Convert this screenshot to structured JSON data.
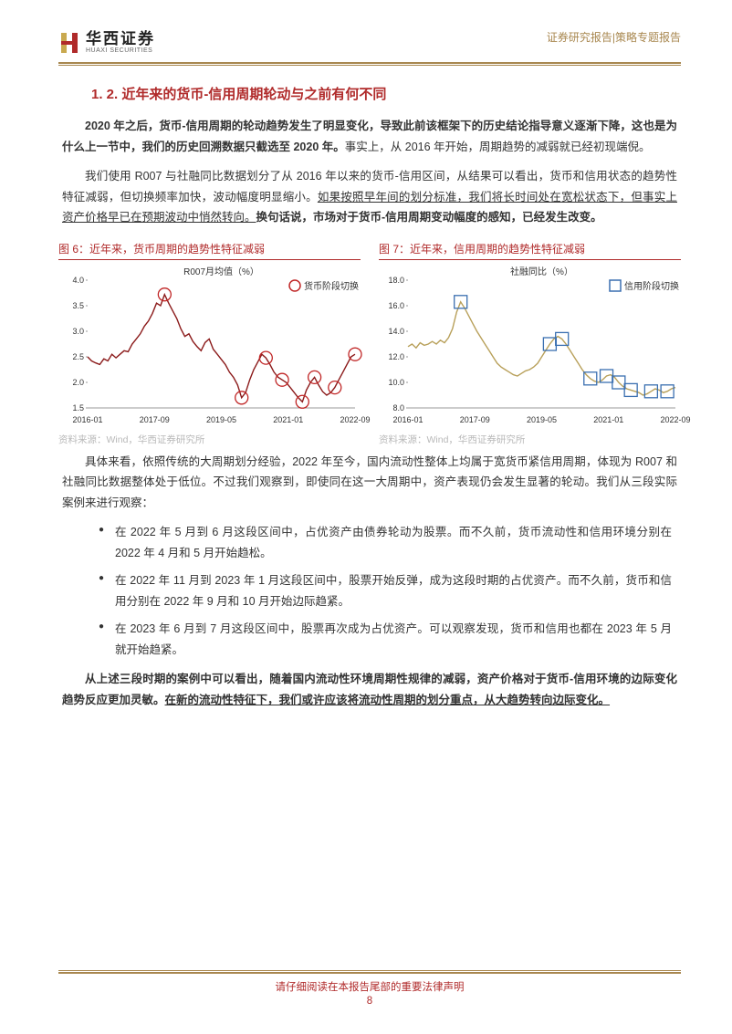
{
  "header": {
    "logo_cn": "华西证券",
    "logo_en": "HUAXI SECURITIES",
    "doc_type": "证券研究报告|策略专题报告"
  },
  "section_title": "1. 2. 近年来的货币-信用周期轮动与之前有何不同",
  "para1_a": "2020 年之后，货币-信用周期的轮动趋势发生了明显变化，导致此前该框架下的历史结论指导意义逐渐下降，这也是为什么上一节中，我们的历史回溯数据只截选至 2020 年。",
  "para1_b": "事实上，从 2016 年开始，周期趋势的减弱就已经初现端倪。",
  "para2_a": "我们使用 R007 与社融同比数据划分了从 2016 年以来的货币-信用区间，从结果可以看出，货币和信用状态的趋势性特征减弱，但切换频率加快，波动幅度明显缩小。",
  "para2_u": "如果按照早年间的划分标准，我们将长时间处在宽松状态下，但事实上资产价格早已在预期波动中悄然转向。",
  "para2_b": "换句话说，市场对于货币-信用周期变动幅度的感知，已经发生改变。",
  "chart6": {
    "title": "图 6：近年来，货币周期的趋势性特征减弱",
    "type": "line",
    "series_label": "R007月均值（%）",
    "legend_marker": "货币阶段切换",
    "line_color": "#8b1a1a",
    "marker_stroke": "#c02626",
    "title_color": "#b02a2a",
    "background_color": "#ffffff",
    "axis_color": "#333333",
    "ylim": [
      1.5,
      4.0
    ],
    "yticks": [
      1.5,
      2.0,
      2.5,
      3.0,
      3.5,
      4.0
    ],
    "xticks": [
      "2016-01",
      "2017-09",
      "2019-05",
      "2021-01",
      "2022-09"
    ],
    "values": [
      2.5,
      2.42,
      2.38,
      2.35,
      2.46,
      2.42,
      2.55,
      2.48,
      2.55,
      2.62,
      2.6,
      2.75,
      2.85,
      2.95,
      3.1,
      3.2,
      3.35,
      3.55,
      3.5,
      3.72,
      3.55,
      3.4,
      3.25,
      3.05,
      2.9,
      2.95,
      2.8,
      2.7,
      2.62,
      2.78,
      2.85,
      2.65,
      2.55,
      2.45,
      2.35,
      2.2,
      2.1,
      1.95,
      1.7,
      1.8,
      2.05,
      2.25,
      2.4,
      2.55,
      2.48,
      2.35,
      2.2,
      2.1,
      2.05,
      2.0,
      1.9,
      1.8,
      1.7,
      1.62,
      1.85,
      2.0,
      2.1,
      1.95,
      1.82,
      1.75,
      1.8,
      1.9,
      2.05,
      2.2,
      2.35,
      2.5,
      2.55
    ],
    "markers_idx": [
      19,
      38,
      44,
      48,
      53,
      56,
      61,
      66
    ],
    "source": "资料来源：Wind，华西证券研究所"
  },
  "chart7": {
    "title": "图 7：近年来，信用周期的趋势性特征减弱",
    "type": "line",
    "series_label": "社融同比（%）",
    "legend_marker": "信用阶段切换",
    "line_color": "#b8a05a",
    "marker_stroke": "#3a6fb0",
    "title_color": "#b02a2a",
    "background_color": "#ffffff",
    "axis_color": "#333333",
    "ylim": [
      8,
      18
    ],
    "yticks": [
      8,
      10,
      12,
      14,
      16,
      18
    ],
    "xticks": [
      "2016-01",
      "2017-09",
      "2019-05",
      "2021-01",
      "2022-09"
    ],
    "values": [
      12.8,
      13.0,
      12.7,
      13.1,
      12.9,
      13.0,
      13.2,
      13.0,
      13.3,
      13.1,
      13.5,
      14.2,
      15.5,
      16.3,
      15.8,
      15.2,
      14.6,
      14.0,
      13.5,
      13.0,
      12.5,
      12.0,
      11.5,
      11.2,
      11.0,
      10.8,
      10.6,
      10.5,
      10.7,
      10.9,
      11.0,
      11.2,
      11.5,
      12.0,
      12.5,
      13.0,
      13.4,
      13.6,
      13.4,
      13.0,
      12.5,
      12.0,
      11.5,
      11.0,
      10.6,
      10.3,
      10.1,
      10.0,
      10.2,
      10.5,
      10.6,
      10.4,
      10.0,
      9.7,
      9.5,
      9.4,
      9.3,
      9.2,
      9.0,
      9.1,
      9.3,
      9.5,
      9.4,
      9.2,
      9.3,
      9.5,
      9.6
    ],
    "markers_idx": [
      13,
      35,
      38,
      45,
      49,
      52,
      55,
      60,
      64
    ],
    "source": "资料来源：Wind，华西证券研究所"
  },
  "para3": "具体来看，依照传统的大周期划分经验，2022 年至今，国内流动性整体上均属于宽货币紧信用周期，体现为 R007 和社融同比数据整体处于低位。不过我们观察到，即使同在这一大周期中，资产表现仍会发生显著的轮动。我们从三段实际案例来进行观察：",
  "bullets": [
    "在 2022 年 5 月到 6 月这段区间中，占优资产由债券轮动为股票。而不久前，货币流动性和信用环境分别在 2022 年 4 月和 5 月开始趋松。",
    "在 2022 年 11 月到 2023 年 1 月这段区间中，股票开始反弹，成为这段时期的占优资产。而不久前，货币和信用分别在 2022 年 9 月和 10 月开始边际趋紧。",
    "在 2023 年 6 月到 7 月这段区间中，股票再次成为占优资产。可以观察发现，货币和信用也都在 2023 年 5 月就开始趋紧。"
  ],
  "para4_a": "从上述三段时期的案例中可以看出，随着国内流动性环境周期性规律的减弱，资产价格对于货币-信用环境的边际变化趋势反应更加灵敏。",
  "para4_u": "在新的流动性特征下，我们或许应该将流动性周期的划分重点，从大趋势转向边际变化。",
  "footer": {
    "disclaimer": "请仔细阅读在本报告尾部的重要法律声明",
    "page": "8"
  }
}
